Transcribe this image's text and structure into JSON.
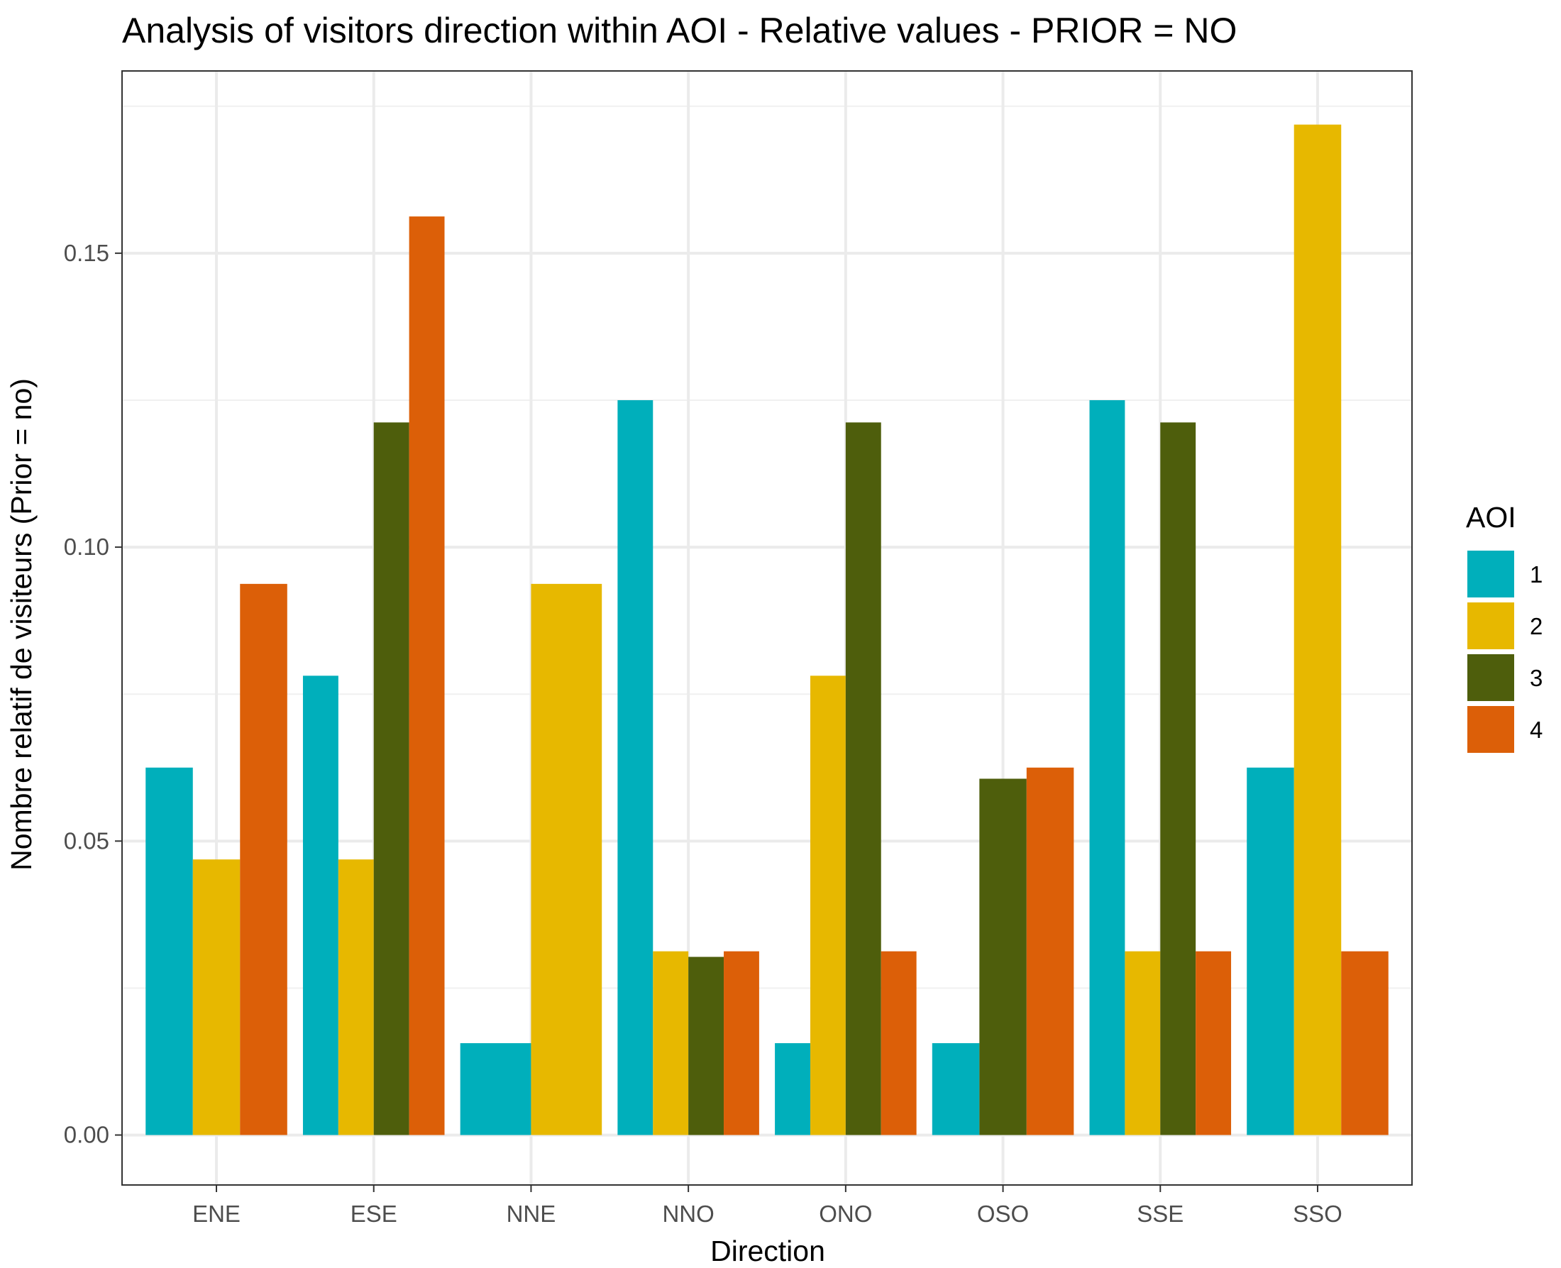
{
  "chart_data": {
    "type": "bar",
    "title": "Analysis of visitors direction within AOI - Relative values - PRIOR = NO",
    "xlabel": "Direction",
    "ylabel": "Nombre relatif de visiteurs (Prior = no)",
    "categories": [
      "ENE",
      "ESE",
      "NNE",
      "NNO",
      "ONO",
      "OSO",
      "SSE",
      "SSO"
    ],
    "series": [
      {
        "name": "1",
        "color": "#00AFBB",
        "values": [
          0.0625,
          0.078125,
          0.015625,
          0.125,
          0.015625,
          0.015625,
          0.125,
          0.0625
        ]
      },
      {
        "name": "2",
        "color": "#E7B800",
        "values": [
          0.046875,
          0.046875,
          0.09375,
          0.03125,
          0.078125,
          null,
          0.03125,
          0.171875
        ]
      },
      {
        "name": "3",
        "color": "#4E5E0C",
        "values": [
          null,
          0.121212,
          null,
          0.030303,
          0.121212,
          0.060606,
          0.121212,
          null
        ]
      },
      {
        "name": "4",
        "color": "#DC5F08",
        "values": [
          0.09375,
          0.15625,
          null,
          0.03125,
          0.03125,
          0.0625,
          0.03125,
          0.03125
        ]
      }
    ],
    "ylim": [
      -0.0085,
      0.181
    ],
    "yticks": [
      "0.00",
      "0.05",
      "0.10",
      "0.15"
    ],
    "ytick_values": [
      0,
      0.05,
      0.1,
      0.15
    ],
    "grid": true,
    "legend": {
      "title": "AOI",
      "placement": "right"
    },
    "dodge": "preserve-total"
  }
}
